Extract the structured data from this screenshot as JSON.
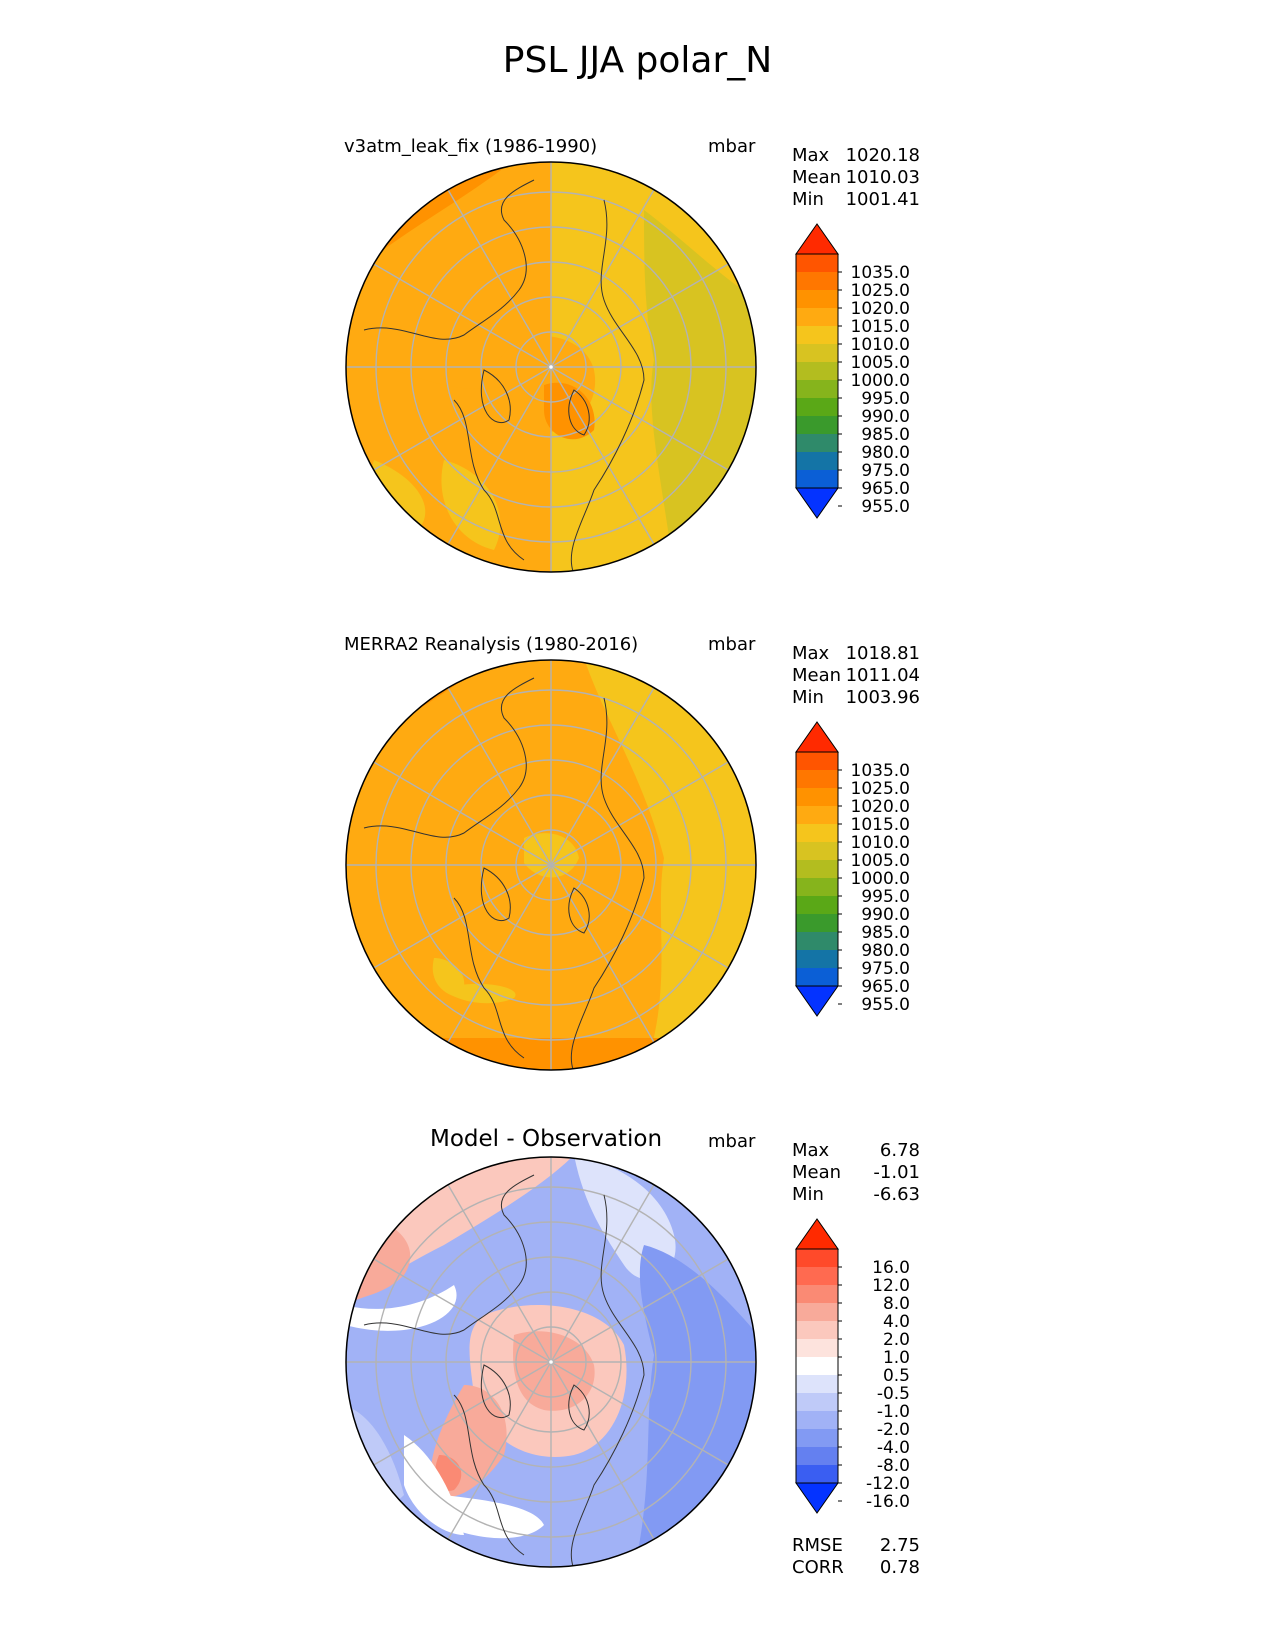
{
  "figure_title": "PSL JJA polar_N",
  "panels": [
    {
      "title": "v3atm_leak_fix (1986-1990)",
      "units": "mbar",
      "stats": [
        {
          "label": "Max",
          "value": "1020.18"
        },
        {
          "label": "Mean",
          "value": "1010.03"
        },
        {
          "label": "Min",
          "value": "1001.41"
        }
      ]
    },
    {
      "title": "MERRA2 Reanalysis (1980-2016)",
      "units": "mbar",
      "stats": [
        {
          "label": "Max",
          "value": "1018.81"
        },
        {
          "label": "Mean",
          "value": "1011.04"
        },
        {
          "label": "Min",
          "value": "1003.96"
        }
      ]
    },
    {
      "title": "Model - Observation",
      "units": "mbar",
      "stats": [
        {
          "label": "Max",
          "value": "6.78"
        },
        {
          "label": "Mean",
          "value": "-1.01"
        },
        {
          "label": "Min",
          "value": "-6.63"
        }
      ],
      "metrics": [
        {
          "label": "RMSE",
          "value": "2.75"
        },
        {
          "label": "CORR",
          "value": "0.78"
        }
      ]
    }
  ],
  "colorbar_abs": {
    "labels": [
      "1035.0",
      "1025.0",
      "1020.0",
      "1015.0",
      "1010.0",
      "1005.0",
      "1000.0",
      "995.0",
      "990.0",
      "985.0",
      "980.0",
      "975.0",
      "965.0",
      "955.0"
    ],
    "colors": [
      "#ff2a00",
      "#ff5500",
      "#ff7700",
      "#ff9200",
      "#ffaa11",
      "#f5c51c",
      "#d8c321",
      "#b3bd1f",
      "#86b41c",
      "#5aa817",
      "#3a9a2c",
      "#2f8a6a",
      "#1474a6",
      "#0b5fd6",
      "#0433ff"
    ]
  },
  "colorbar_diff": {
    "labels": [
      "16.0",
      "12.0",
      "8.0",
      "4.0",
      "2.0",
      "1.0",
      "0.5",
      "-0.5",
      "-1.0",
      "-2.0",
      "-4.0",
      "-8.0",
      "-12.0",
      "-16.0"
    ],
    "colors": [
      "#ff2a00",
      "#ff4a2a",
      "#ff6a50",
      "#fa8a74",
      "#f8aa9a",
      "#fbc8bd",
      "#fde3dd",
      "#ffffff",
      "#dde3fb",
      "#bfcaf8",
      "#a1b2f6",
      "#829af3",
      "#6480f0",
      "#3a5ef2",
      "#0433ff"
    ]
  }
}
